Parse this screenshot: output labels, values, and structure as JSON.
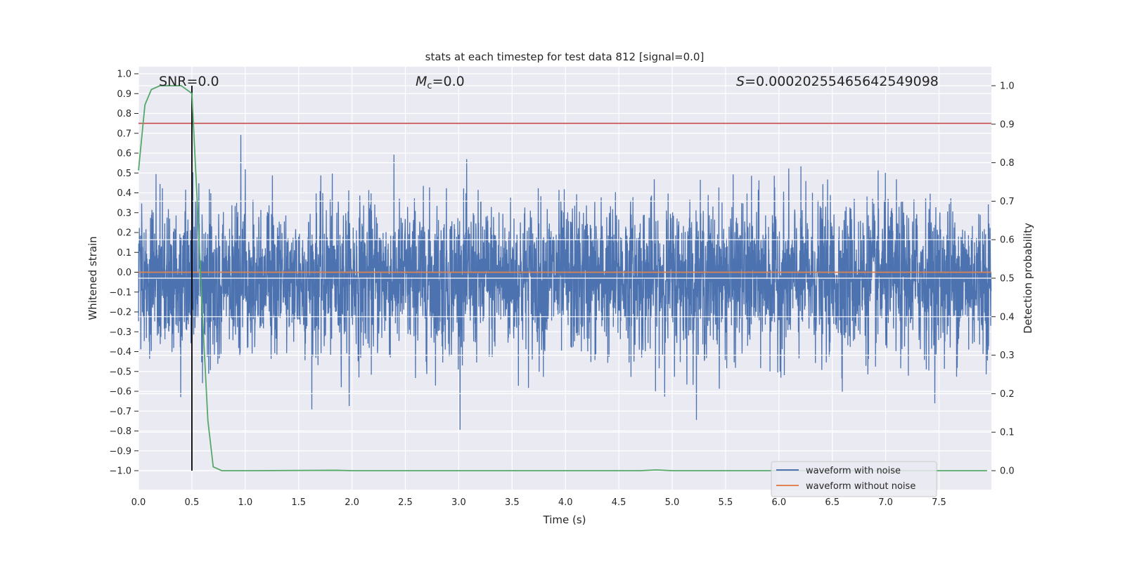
{
  "chart_data": {
    "type": "line",
    "title": "stats at each timestep for test data 812 [signal=0.0]",
    "xlabel": "Time (s)",
    "ylabel": "Whitened strain",
    "ylabel_right": "Detection probability",
    "xlim": [
      0,
      7.99
    ],
    "ylim": [
      -1.09,
      1.04
    ],
    "ylim_right": [
      -0.05,
      1.05
    ],
    "xticks": [
      "0.0",
      "0.5",
      "1.0",
      "1.5",
      "2.0",
      "2.5",
      "3.0",
      "3.5",
      "4.0",
      "4.5",
      "5.0",
      "5.5",
      "6.0",
      "6.5",
      "7.0",
      "7.5"
    ],
    "yticks": [
      "1.0",
      "0.9",
      "0.8",
      "0.7",
      "0.6",
      "0.5",
      "0.4",
      "0.3",
      "0.2",
      "0.1",
      "0.0",
      "−0.1",
      "−0.2",
      "−0.3",
      "−0.4",
      "−0.5",
      "−0.6",
      "−0.7",
      "−0.8",
      "−0.9",
      "−1.0"
    ],
    "yticks_right": [
      "1.0",
      "0.9",
      "0.8",
      "0.7",
      "0.6",
      "0.5",
      "0.4",
      "0.3",
      "0.2",
      "0.1",
      "0.0"
    ],
    "grid": true,
    "legend_position": "lower-right",
    "series": [
      {
        "name": "waveform with noise",
        "color": "#4c72b0",
        "axis": "left",
        "generated": {
          "kind": "gaussian-noise",
          "sigma": 0.19,
          "samples": 4000,
          "seed": 812
        }
      },
      {
        "name": "waveform without noise",
        "color": "#dd8452",
        "axis": "left",
        "x": [
          0,
          7.99
        ],
        "y": [
          0,
          0
        ]
      },
      {
        "name": "detection probability",
        "color": "#55a868",
        "axis": "right",
        "x": [
          0,
          0.06,
          0.12,
          0.2,
          0.3,
          0.4,
          0.45,
          0.5,
          0.55,
          0.6,
          0.65,
          0.7,
          0.78,
          1.0,
          1.85,
          2.0,
          4.7,
          4.85,
          5.0,
          7.95
        ],
        "y": [
          0.78,
          0.95,
          0.99,
          1.0,
          1.0,
          1.0,
          0.99,
          0.98,
          0.7,
          0.4,
          0.13,
          0.01,
          0.0,
          0.0,
          0.001,
          0.0,
          0.0,
          0.002,
          0.0,
          0.0
        ]
      }
    ],
    "threshold": {
      "value": 0.75,
      "color": "#c44e52"
    },
    "marker_time": 0.5,
    "annotations": [
      {
        "text": "SNR=0.0",
        "x": 0.2,
        "y": 0.97
      },
      {
        "text_italic": "M",
        "sub": "c",
        "text": "=0.0",
        "x": 2.6,
        "y": 0.97
      },
      {
        "text_italic": "S",
        "text": "=0.00020255465642549098",
        "x": 5.6,
        "y": 0.97
      }
    ]
  }
}
